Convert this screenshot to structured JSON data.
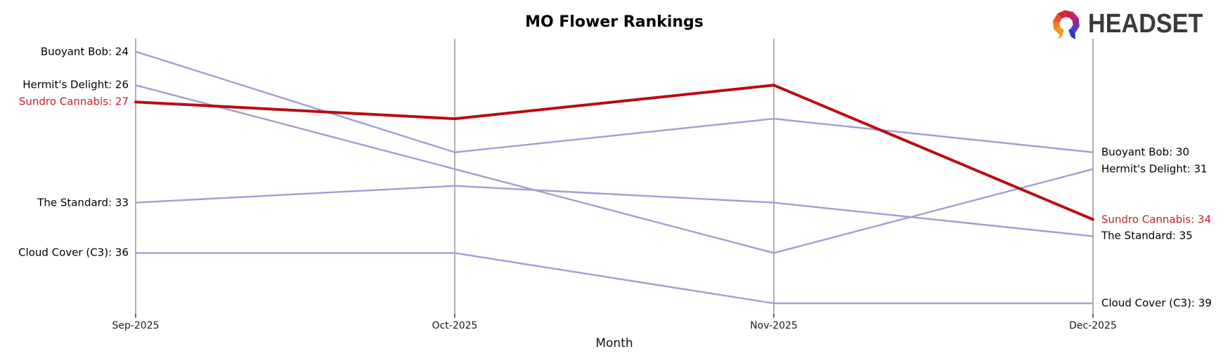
{
  "logo": {
    "text": "HEADSET"
  },
  "chart_data": {
    "type": "line",
    "subtype": "bump-rank-chart",
    "title": "MO Flower Rankings",
    "xlabel": "Month",
    "categories": [
      "Sep-2025",
      "Oct-2025",
      "Nov-2025",
      "Dec-2025"
    ],
    "y_axis": {
      "inverted": true,
      "meaning": "rank (lower number = higher position)",
      "range_shown": [
        24,
        39
      ]
    },
    "grid": "vertical month axes only, no horizontal gridlines, no y tick labels",
    "legend_position": "inline labels at line start (left) and line end (right)",
    "series": [
      {
        "name": "Buoyant Bob",
        "values": [
          24,
          30,
          28,
          30
        ],
        "color": "#a49cd4",
        "emphasis": false,
        "label_left": "Buoyant Bob: 24",
        "label_right": "Buoyant Bob: 30"
      },
      {
        "name": "Hermit's Delight",
        "values": [
          26,
          31,
          36,
          31
        ],
        "color": "#a49cd4",
        "emphasis": false,
        "label_left": "Hermit's Delight: 26",
        "label_right": "Hermit's Delight: 31"
      },
      {
        "name": "The Standard",
        "values": [
          33,
          32,
          33,
          35
        ],
        "color": "#a49cd4",
        "emphasis": false,
        "label_left": "The Standard: 33",
        "label_right": "The Standard: 35"
      },
      {
        "name": "Cloud Cover (C3)",
        "values": [
          36,
          36,
          39,
          39
        ],
        "color": "#a49cd4",
        "emphasis": false,
        "label_left": "Cloud Cover (C3): 36",
        "label_right": "Cloud Cover (C3): 39"
      },
      {
        "name": "Sundro Cannabis",
        "values": [
          27,
          28,
          26,
          34
        ],
        "color": "#b90d12",
        "emphasis": true,
        "label_left": "Sundro Cannabis: 27",
        "label_right": "Sundro Cannabis: 34"
      }
    ],
    "colors": {
      "axis_line": "#b0b0b0",
      "tick_mark": "#000000",
      "default_series": "#a49cd4",
      "emphasis_series": "#b90d12",
      "emphasis_label": "#c42127",
      "text": "#000000",
      "logo_text": "#3a3a3c"
    }
  }
}
